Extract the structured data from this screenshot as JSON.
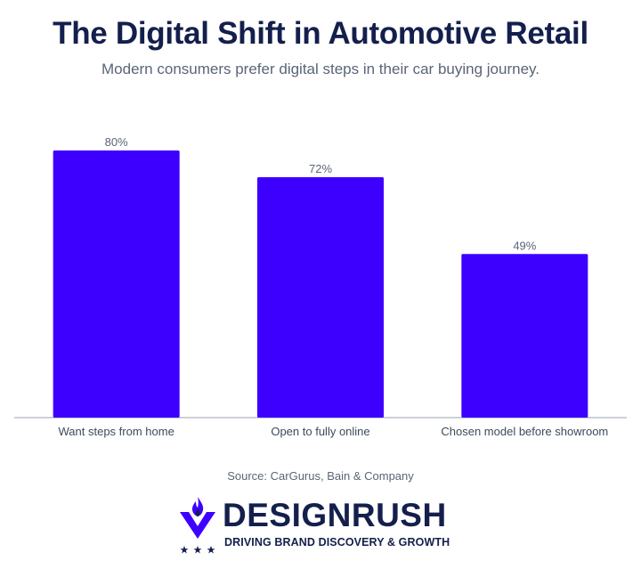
{
  "header": {
    "title": "The Digital Shift in Automotive Retail",
    "subtitle": "Modern consumers prefer digital steps in their car buying journey."
  },
  "chart_data": {
    "type": "bar",
    "categories": [
      "Want steps from home",
      "Open to fully online",
      "Chosen model before showroom"
    ],
    "values": [
      80,
      72,
      49
    ],
    "data_labels": [
      "80%",
      "72%",
      "49%"
    ],
    "ylim": [
      0,
      100
    ],
    "grid": false,
    "bar_color": "#3d00ff",
    "axis_color": "#9aa3b2"
  },
  "footer": {
    "source": "Source: CarGurus, Bain & Company"
  },
  "brand": {
    "name": "DESIGNRUSH",
    "tagline": "DRIVING BRAND DISCOVERY & GROWTH",
    "icon": "flame-shield-logo-icon",
    "colors": {
      "navy": "#141f4c",
      "purple": "#3d00ff"
    }
  }
}
